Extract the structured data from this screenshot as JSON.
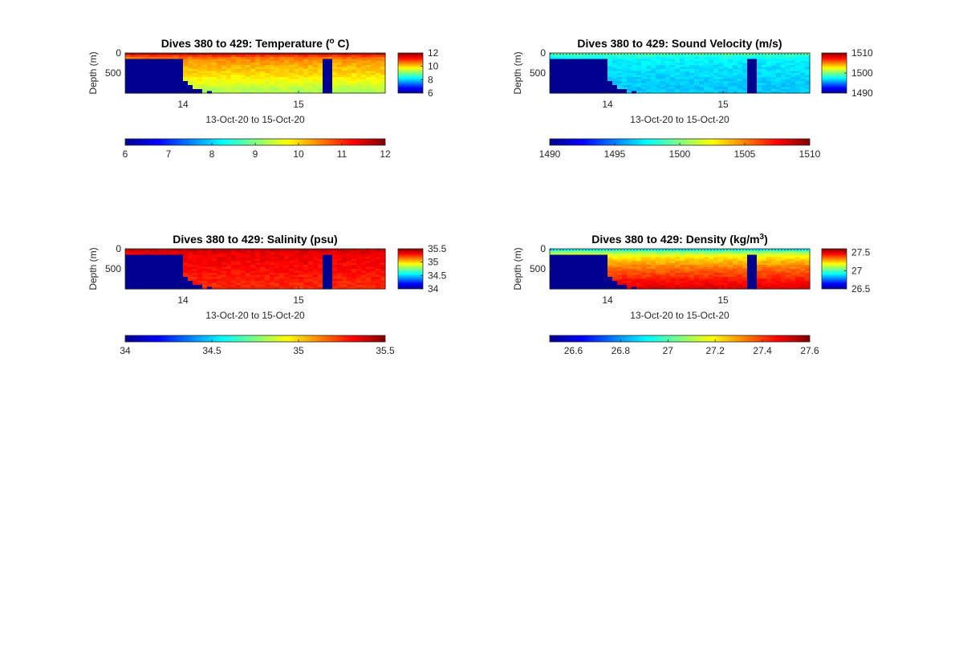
{
  "chart_data": [
    {
      "type": "heatmap",
      "title": "Dives 380 to 429: Temperature (",
      "title_sup": "o",
      "title_tail": " C)",
      "xlabel": "13-Oct-20 to 15-Oct-20",
      "ylabel": "Depth (m)",
      "xlim": [
        13.5,
        15.75
      ],
      "ylim": [
        0,
        1000
      ],
      "xticks": [
        14,
        15
      ],
      "xtick_labels": [
        "14",
        "15"
      ],
      "yticks": [
        0,
        500
      ],
      "ytick_labels": [
        "0",
        "500"
      ],
      "zrange": [
        6,
        12
      ],
      "colorbar_ticks": [
        12,
        10,
        8,
        6
      ],
      "horizontal_colorbar_ticks": [
        6,
        7,
        8,
        9,
        10,
        11,
        12
      ],
      "profile": [
        [
          0,
          11.8
        ],
        [
          40,
          11.5
        ],
        [
          80,
          10.8
        ],
        [
          150,
          10.5
        ],
        [
          300,
          10.2
        ],
        [
          500,
          10.0
        ],
        [
          700,
          9.7
        ],
        [
          850,
          9.4
        ],
        [
          1000,
          9.2
        ]
      ],
      "colormap": "jet"
    },
    {
      "type": "heatmap",
      "title": "Dives 380 to 429: Sound Velocity (m/s)",
      "xlabel": "13-Oct-20 to 15-Oct-20",
      "ylabel": "Depth (m)",
      "xlim": [
        13.5,
        15.75
      ],
      "ylim": [
        0,
        1000
      ],
      "xticks": [
        14,
        15
      ],
      "xtick_labels": [
        "14",
        "15"
      ],
      "yticks": [
        0,
        500
      ],
      "ytick_labels": [
        "0",
        "500"
      ],
      "zrange": [
        1490,
        1510
      ],
      "colorbar_ticks": [
        1510,
        1500,
        1490
      ],
      "horizontal_colorbar_ticks": [
        1490,
        1495,
        1500,
        1505,
        1510
      ],
      "profile": [
        [
          0,
          1500.5
        ],
        [
          40,
          1498.5
        ],
        [
          150,
          1497.5
        ],
        [
          300,
          1497.0
        ],
        [
          500,
          1496.8
        ],
        [
          700,
          1496.6
        ],
        [
          850,
          1496.4
        ],
        [
          1000,
          1496.5
        ]
      ],
      "colormap": "jet"
    },
    {
      "type": "heatmap",
      "title": "Dives 380 to 429: Salinity (psu)",
      "xlabel": "13-Oct-20 to 15-Oct-20",
      "ylabel": "Depth (m)",
      "xlim": [
        13.5,
        15.75
      ],
      "ylim": [
        0,
        1000
      ],
      "xticks": [
        14,
        15
      ],
      "xtick_labels": [
        "14",
        "15"
      ],
      "yticks": [
        0,
        500
      ],
      "ytick_labels": [
        "0",
        "500"
      ],
      "zrange": [
        34,
        35.5
      ],
      "colorbar_ticks": [
        35.5,
        35,
        34.5,
        34
      ],
      "horizontal_colorbar_ticks": [
        34,
        34.5,
        35,
        35.5
      ],
      "profile": [
        [
          0,
          35.42
        ],
        [
          80,
          35.35
        ],
        [
          200,
          35.33
        ],
        [
          500,
          35.3
        ],
        [
          800,
          35.27
        ],
        [
          1000,
          35.25
        ]
      ],
      "colormap": "jet"
    },
    {
      "type": "heatmap",
      "title": "Dives 380 to 429: Density (kg/m",
      "title_sup": "3",
      "title_tail": ")",
      "xlabel": "13-Oct-20 to 15-Oct-20",
      "ylabel": "Depth (m)",
      "xlim": [
        13.5,
        15.75
      ],
      "ylim": [
        0,
        1000
      ],
      "xticks": [
        14,
        15
      ],
      "xtick_labels": [
        "14",
        "15"
      ],
      "yticks": [
        0,
        500
      ],
      "ytick_labels": [
        "0",
        "500"
      ],
      "zrange": [
        26.5,
        27.6
      ],
      "colorbar_ticks": [
        27.5,
        27,
        26.5
      ],
      "horizontal_colorbar_ticks": [
        26.6,
        26.8,
        27,
        27.2,
        27.4,
        27.6
      ],
      "profile": [
        [
          0,
          26.85
        ],
        [
          40,
          26.95
        ],
        [
          100,
          27.1
        ],
        [
          200,
          27.2
        ],
        [
          400,
          27.3
        ],
        [
          600,
          27.38
        ],
        [
          800,
          27.45
        ],
        [
          1000,
          27.5
        ]
      ],
      "colormap": "jet"
    }
  ]
}
